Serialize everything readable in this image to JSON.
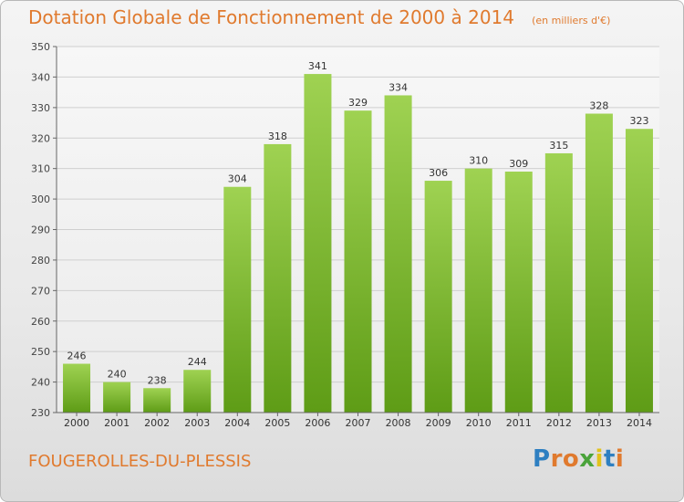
{
  "header": {
    "title": "Dotation Globale de Fonctionnement de 2000 à 2014",
    "unit_note": "(en milliers d'€)"
  },
  "footer": {
    "commune": "FOUGEROLLES-DU-PLESSIS",
    "logo_text": "Proxiti",
    "logo_colors": [
      "#2e7fc1",
      "#e07a2e",
      "#e07a2e",
      "#4aa33a",
      "#e2c21c",
      "#2e7fc1",
      "#e07a2e"
    ]
  },
  "colors": {
    "accent": "#e07a2e",
    "bar_light": "#9fd252",
    "bar_dark": "#5e9c16",
    "grid": "#cfcfcf"
  },
  "chart_data": {
    "type": "bar",
    "categories": [
      "2000",
      "2001",
      "2002",
      "2003",
      "2004",
      "2005",
      "2006",
      "2007",
      "2008",
      "2009",
      "2010",
      "2011",
      "2012",
      "2013",
      "2014"
    ],
    "values": [
      246,
      240,
      238,
      244,
      304,
      318,
      341,
      329,
      334,
      306,
      310,
      309,
      315,
      328,
      323
    ],
    "title": "Dotation Globale de Fonctionnement de 2000 à 2014",
    "ylim": [
      230,
      350
    ],
    "yticks": [
      230,
      240,
      250,
      260,
      270,
      280,
      290,
      300,
      310,
      320,
      330,
      340,
      350
    ],
    "grid": true,
    "data_labels": true
  }
}
